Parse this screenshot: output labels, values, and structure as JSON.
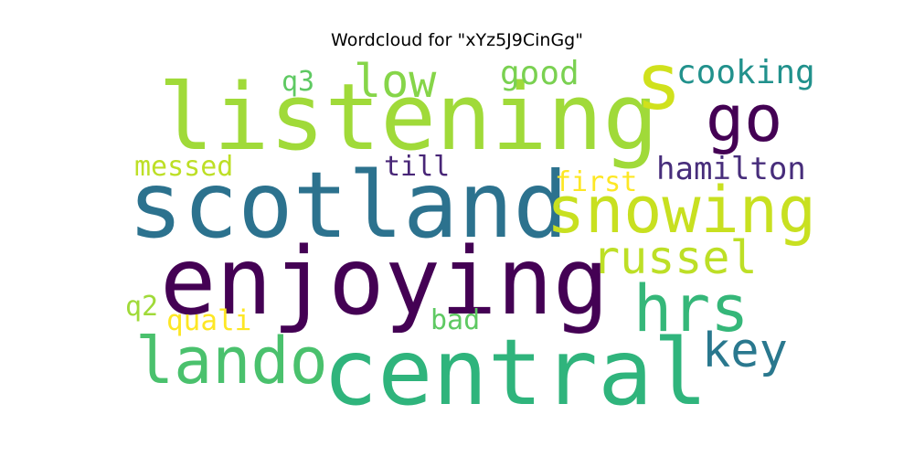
{
  "title": "Wordcloud for \"xYz5J9CinGg\"",
  "words": [
    {
      "text": "listening",
      "color": "#a0da39"
    },
    {
      "text": "scotland",
      "color": "#2c728e"
    },
    {
      "text": "enjoying",
      "color": "#440154"
    },
    {
      "text": "central",
      "color": "#2fb47c"
    },
    {
      "text": "snowing",
      "color": "#c8e020"
    },
    {
      "text": "lando",
      "color": "#4ac16d"
    },
    {
      "text": "s",
      "color": "#d0e11c"
    },
    {
      "text": "go",
      "color": "#440154"
    },
    {
      "text": "hrs",
      "color": "#35b779"
    },
    {
      "text": "russel",
      "color": "#bddf26"
    },
    {
      "text": "key",
      "color": "#2a788e"
    },
    {
      "text": "low",
      "color": "#86d549"
    },
    {
      "text": "cooking",
      "color": "#21918c"
    },
    {
      "text": "good",
      "color": "#7ad151"
    },
    {
      "text": "q3",
      "color": "#5ec962"
    },
    {
      "text": "hamilton",
      "color": "#472d7b"
    },
    {
      "text": "messed",
      "color": "#bddf26"
    },
    {
      "text": "till",
      "color": "#482677"
    },
    {
      "text": "first",
      "color": "#fde725"
    },
    {
      "text": "quali",
      "color": "#fde725"
    },
    {
      "text": "bad",
      "color": "#5ec962"
    },
    {
      "text": "q2",
      "color": "#a0da39"
    }
  ]
}
